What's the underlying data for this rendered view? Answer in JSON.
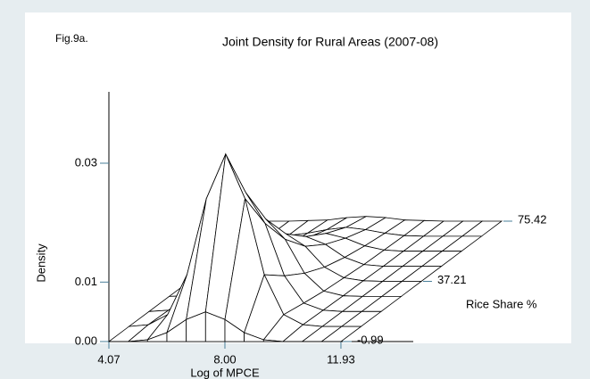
{
  "chart_data": {
    "type": "surface",
    "figure_label": "Fig.9a.",
    "title": "Joint Density for Rural Areas (2007-08)",
    "x_label": "Log of MPCE",
    "y_label": "Density",
    "depth_label": "Rice Share %",
    "x": [
      4.07,
      4.725,
      5.38,
      6.035,
      6.69,
      7.345,
      8.0,
      8.655,
      9.31,
      9.965,
      10.62,
      11.275,
      11.93
    ],
    "depth": [
      -0.99,
      8.56,
      18.11,
      27.66,
      37.21,
      46.77,
      56.32,
      65.87,
      75.42
    ],
    "values": [
      [
        0,
        0,
        0.0003,
        0.0015,
        0.0037,
        0.005,
        0.0037,
        0.0015,
        0.0003,
        0,
        0,
        0,
        0
      ],
      [
        0,
        0.0003,
        0.002,
        0.0087,
        0.0215,
        0.029,
        0.0215,
        0.0087,
        0.002,
        0.0003,
        0,
        0,
        0
      ],
      [
        0,
        0.0002,
        0.0014,
        0.006,
        0.0148,
        0.02,
        0.0148,
        0.006,
        0.0014,
        0.0002,
        0,
        0,
        0
      ],
      [
        0,
        0.0001,
        0.0009,
        0.0039,
        0.0096,
        0.013,
        0.0096,
        0.0039,
        0.0009,
        0.0001,
        0,
        0,
        0
      ],
      [
        0,
        0.0001,
        0.0006,
        0.0024,
        0.0059,
        0.008,
        0.0059,
        0.0024,
        0.0006,
        0.0001,
        0,
        0,
        0
      ],
      [
        0,
        0,
        0.0003,
        0.0015,
        0.0037,
        0.005,
        0.0037,
        0.0015,
        0.0003,
        0,
        0,
        0,
        0
      ],
      [
        0,
        0,
        0.0002,
        0.0009,
        0.0022,
        0.003,
        0.0022,
        0.0009,
        0.0002,
        0,
        0,
        0,
        0
      ],
      [
        0,
        0,
        0.0001,
        0.0005,
        0.0011,
        0.0015,
        0.0011,
        0.0005,
        0.0001,
        0,
        0,
        0,
        0
      ],
      [
        0,
        0,
        0.0001,
        0.0002,
        0.0006,
        0.0008,
        0.0006,
        0.0002,
        0.0001,
        0,
        0,
        0,
        0
      ]
    ],
    "color": "#000000",
    "tick_color": "#4a7f9a",
    "xlim": [
      4.07,
      14.38
    ],
    "xticks": [
      4.07,
      {
        "value": 8,
        "label": "8.00"
      },
      11.93
    ],
    "ylim": [
      0,
      0.042
    ],
    "yticks": [
      {
        "value": 0,
        "label": "0.00"
      },
      0.01,
      0.03
    ],
    "depth_lim": [
      -0.99,
      75.42
    ],
    "depth_ticks": [
      -0.99,
      37.21,
      75.42
    ]
  }
}
